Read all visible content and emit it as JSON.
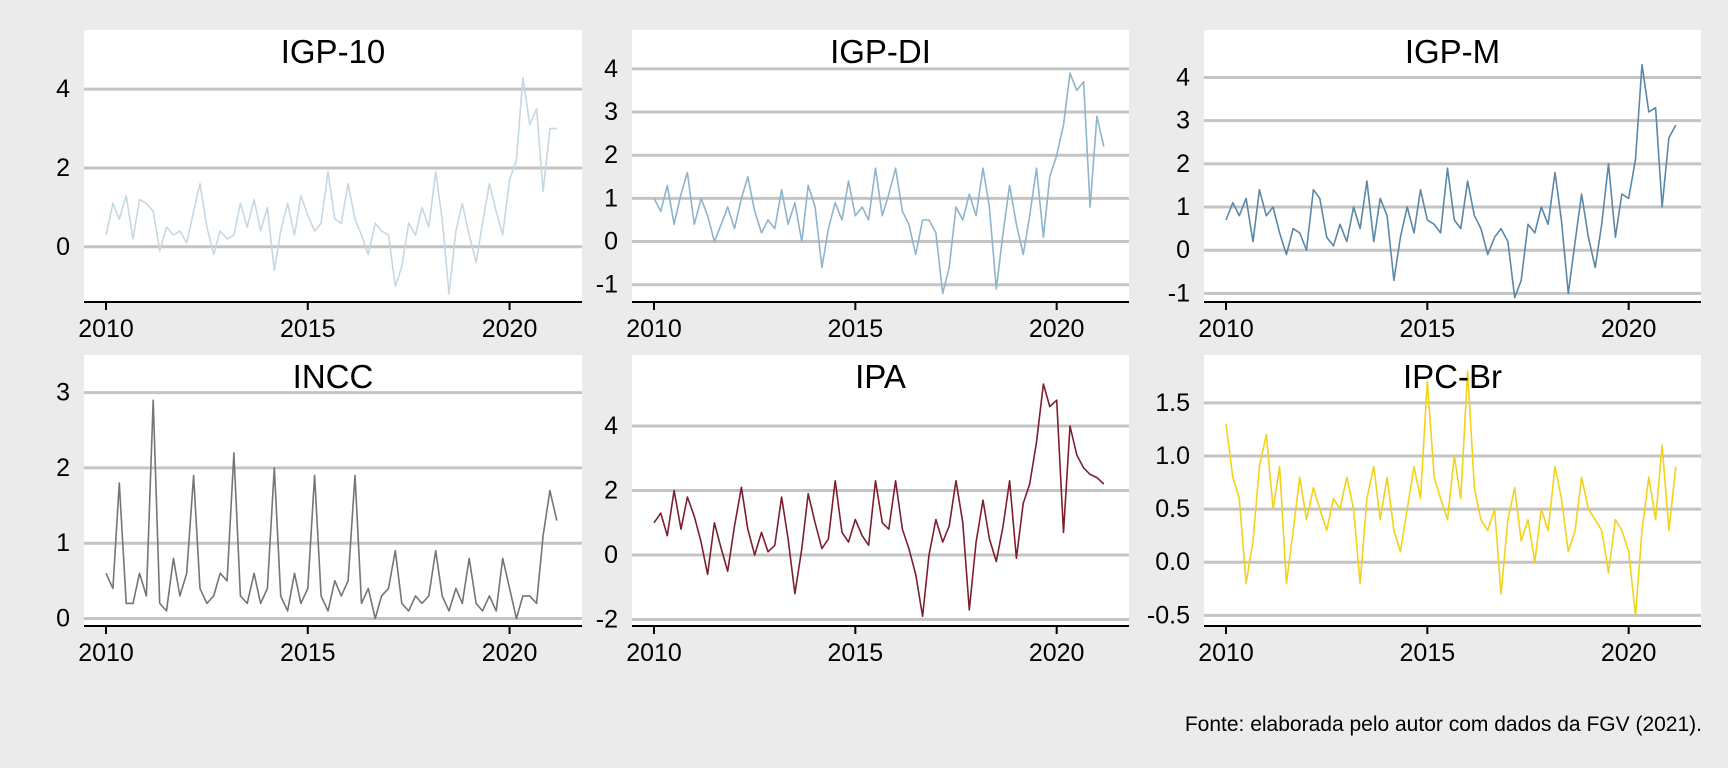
{
  "caption": "Fonte: elaborada pelo autor com dados da FGV (2021).",
  "chart_data": [
    {
      "type": "line",
      "title": "IGP-10",
      "color": "#c6d8e4",
      "xlim": [
        2010,
        2021.25
      ],
      "ylim": [
        -1.4,
        5.5
      ],
      "xticks": [
        2010,
        2015,
        2020
      ],
      "xtick_labels": [
        "2010",
        "2015",
        "2020"
      ],
      "yticks": [
        0,
        2,
        4
      ],
      "ytick_labels": [
        "0",
        "2",
        "4"
      ],
      "grid": "horizontal",
      "series": [
        {
          "x": [
            2010.0,
            2010.17,
            2010.33,
            2010.5,
            2010.67,
            2010.83,
            2011.0,
            2011.17,
            2011.33,
            2011.5,
            2011.67,
            2011.83,
            2012.0,
            2012.17,
            2012.33,
            2012.5,
            2012.67,
            2012.83,
            2013.0,
            2013.17,
            2013.33,
            2013.5,
            2013.67,
            2013.83,
            2014.0,
            2014.17,
            2014.33,
            2014.5,
            2014.67,
            2014.83,
            2015.0,
            2015.17,
            2015.33,
            2015.5,
            2015.67,
            2015.83,
            2016.0,
            2016.17,
            2016.33,
            2016.5,
            2016.67,
            2016.83,
            2017.0,
            2017.17,
            2017.33,
            2017.5,
            2017.67,
            2017.83,
            2018.0,
            2018.17,
            2018.33,
            2018.5,
            2018.67,
            2018.83,
            2019.0,
            2019.17,
            2019.33,
            2019.5,
            2019.67,
            2019.83,
            2020.0,
            2020.17,
            2020.33,
            2020.5,
            2020.67,
            2020.83,
            2021.0,
            2021.17
          ],
          "y": [
            0.3,
            1.1,
            0.7,
            1.3,
            0.2,
            1.2,
            1.1,
            0.9,
            -0.1,
            0.5,
            0.3,
            0.4,
            0.1,
            0.9,
            1.6,
            0.5,
            -0.2,
            0.4,
            0.2,
            0.3,
            1.1,
            0.5,
            1.2,
            0.4,
            1.0,
            -0.6,
            0.4,
            1.1,
            0.3,
            1.3,
            0.8,
            0.4,
            0.6,
            1.9,
            0.7,
            0.6,
            1.6,
            0.7,
            0.3,
            -0.2,
            0.6,
            0.4,
            0.3,
            -1.0,
            -0.5,
            0.6,
            0.3,
            1.0,
            0.5,
            1.9,
            0.7,
            -1.2,
            0.4,
            1.1,
            0.3,
            -0.4,
            0.6,
            1.6,
            0.9,
            0.3,
            1.7,
            2.2,
            4.3,
            3.1,
            3.5,
            1.4,
            3.0,
            3.0
          ]
        }
      ]
    },
    {
      "type": "line",
      "title": "IGP-DI",
      "color": "#8fb4cc",
      "xlim": [
        2010,
        2021.25
      ],
      "ylim": [
        -1.4,
        4.9
      ],
      "xticks": [
        2010,
        2015,
        2020
      ],
      "xtick_labels": [
        "2010",
        "2015",
        "2020"
      ],
      "yticks": [
        -1,
        0,
        1,
        2,
        3,
        4
      ],
      "ytick_labels": [
        "-1",
        "0",
        "1",
        "2",
        "3",
        "4"
      ],
      "grid": "horizontal",
      "series": [
        {
          "x": [
            2010.0,
            2010.17,
            2010.33,
            2010.5,
            2010.67,
            2010.83,
            2011.0,
            2011.17,
            2011.33,
            2011.5,
            2011.67,
            2011.83,
            2012.0,
            2012.17,
            2012.33,
            2012.5,
            2012.67,
            2012.83,
            2013.0,
            2013.17,
            2013.33,
            2013.5,
            2013.67,
            2013.83,
            2014.0,
            2014.17,
            2014.33,
            2014.5,
            2014.67,
            2014.83,
            2015.0,
            2015.17,
            2015.33,
            2015.5,
            2015.67,
            2015.83,
            2016.0,
            2016.17,
            2016.33,
            2016.5,
            2016.67,
            2016.83,
            2017.0,
            2017.17,
            2017.33,
            2017.5,
            2017.67,
            2017.83,
            2018.0,
            2018.17,
            2018.33,
            2018.5,
            2018.67,
            2018.83,
            2019.0,
            2019.17,
            2019.33,
            2019.5,
            2019.67,
            2019.83,
            2020.0,
            2020.17,
            2020.33,
            2020.5,
            2020.67,
            2020.83,
            2021.0,
            2021.17
          ],
          "y": [
            1.0,
            0.7,
            1.3,
            0.4,
            1.1,
            1.6,
            0.4,
            1.0,
            0.6,
            0.0,
            0.4,
            0.8,
            0.3,
            1.0,
            1.5,
            0.7,
            0.2,
            0.5,
            0.3,
            1.2,
            0.4,
            0.9,
            0.0,
            1.3,
            0.8,
            -0.6,
            0.3,
            0.9,
            0.5,
            1.4,
            0.6,
            0.8,
            0.5,
            1.7,
            0.6,
            1.1,
            1.7,
            0.7,
            0.4,
            -0.3,
            0.5,
            0.5,
            0.2,
            -1.2,
            -0.6,
            0.8,
            0.5,
            1.1,
            0.6,
            1.7,
            0.8,
            -1.1,
            0.2,
            1.3,
            0.4,
            -0.3,
            0.6,
            1.7,
            0.1,
            1.5,
            2.0,
            2.7,
            3.9,
            3.5,
            3.7,
            0.8,
            2.9,
            2.2
          ]
        }
      ]
    },
    {
      "type": "line",
      "title": "IGP-M",
      "color": "#5b88a8",
      "xlim": [
        2010,
        2021.25
      ],
      "ylim": [
        -1.2,
        5.1
      ],
      "xticks": [
        2010,
        2015,
        2020
      ],
      "xtick_labels": [
        "2010",
        "2015",
        "2020"
      ],
      "yticks": [
        -1,
        0,
        1,
        2,
        3,
        4
      ],
      "ytick_labels": [
        "-1",
        "0",
        "1",
        "2",
        "3",
        "4"
      ],
      "grid": "horizontal",
      "series": [
        {
          "x": [
            2010.0,
            2010.17,
            2010.33,
            2010.5,
            2010.67,
            2010.83,
            2011.0,
            2011.17,
            2011.33,
            2011.5,
            2011.67,
            2011.83,
            2012.0,
            2012.17,
            2012.33,
            2012.5,
            2012.67,
            2012.83,
            2013.0,
            2013.17,
            2013.33,
            2013.5,
            2013.67,
            2013.83,
            2014.0,
            2014.17,
            2014.33,
            2014.5,
            2014.67,
            2014.83,
            2015.0,
            2015.17,
            2015.33,
            2015.5,
            2015.67,
            2015.83,
            2016.0,
            2016.17,
            2016.33,
            2016.5,
            2016.67,
            2016.83,
            2017.0,
            2017.17,
            2017.33,
            2017.5,
            2017.67,
            2017.83,
            2018.0,
            2018.17,
            2018.33,
            2018.5,
            2018.67,
            2018.83,
            2019.0,
            2019.17,
            2019.33,
            2019.5,
            2019.67,
            2019.83,
            2020.0,
            2020.17,
            2020.33,
            2020.5,
            2020.67,
            2020.83,
            2021.0,
            2021.17
          ],
          "y": [
            0.7,
            1.1,
            0.8,
            1.2,
            0.2,
            1.4,
            0.8,
            1.0,
            0.4,
            -0.1,
            0.5,
            0.4,
            0.0,
            1.4,
            1.2,
            0.3,
            0.1,
            0.6,
            0.2,
            1.0,
            0.5,
            1.6,
            0.2,
            1.2,
            0.8,
            -0.7,
            0.3,
            1.0,
            0.4,
            1.4,
            0.7,
            0.6,
            0.4,
            1.9,
            0.7,
            0.5,
            1.6,
            0.8,
            0.5,
            -0.1,
            0.3,
            0.5,
            0.2,
            -1.1,
            -0.7,
            0.6,
            0.4,
            1.0,
            0.6,
            1.8,
            0.7,
            -1.0,
            0.2,
            1.3,
            0.3,
            -0.4,
            0.6,
            2.0,
            0.3,
            1.3,
            1.2,
            2.1,
            4.3,
            3.2,
            3.3,
            1.0,
            2.6,
            2.9
          ]
        }
      ]
    },
    {
      "type": "line",
      "title": "INCC",
      "color": "#757575",
      "xlim": [
        2010,
        2021.25
      ],
      "ylim": [
        -0.1,
        3.5
      ],
      "xticks": [
        2010,
        2015,
        2020
      ],
      "xtick_labels": [
        "2010",
        "2015",
        "2020"
      ],
      "yticks": [
        0,
        1,
        2,
        3
      ],
      "ytick_labels": [
        "0",
        "1",
        "2",
        "3"
      ],
      "grid": "horizontal",
      "series": [
        {
          "x": [
            2010.0,
            2010.17,
            2010.33,
            2010.5,
            2010.67,
            2010.83,
            2011.0,
            2011.17,
            2011.33,
            2011.5,
            2011.67,
            2011.83,
            2012.0,
            2012.17,
            2012.33,
            2012.5,
            2012.67,
            2012.83,
            2013.0,
            2013.17,
            2013.33,
            2013.5,
            2013.67,
            2013.83,
            2014.0,
            2014.17,
            2014.33,
            2014.5,
            2014.67,
            2014.83,
            2015.0,
            2015.17,
            2015.33,
            2015.5,
            2015.67,
            2015.83,
            2016.0,
            2016.17,
            2016.33,
            2016.5,
            2016.67,
            2016.83,
            2017.0,
            2017.17,
            2017.33,
            2017.5,
            2017.67,
            2017.83,
            2018.0,
            2018.17,
            2018.33,
            2018.5,
            2018.67,
            2018.83,
            2019.0,
            2019.17,
            2019.33,
            2019.5,
            2019.67,
            2019.83,
            2020.0,
            2020.17,
            2020.33,
            2020.5,
            2020.67,
            2020.83,
            2021.0,
            2021.17
          ],
          "y": [
            0.6,
            0.4,
            1.8,
            0.2,
            0.2,
            0.6,
            0.3,
            2.9,
            0.2,
            0.1,
            0.8,
            0.3,
            0.6,
            1.9,
            0.4,
            0.2,
            0.3,
            0.6,
            0.5,
            2.2,
            0.3,
            0.2,
            0.6,
            0.2,
            0.4,
            2.0,
            0.3,
            0.1,
            0.6,
            0.2,
            0.4,
            1.9,
            0.3,
            0.1,
            0.5,
            0.3,
            0.5,
            1.9,
            0.2,
            0.4,
            0.0,
            0.3,
            0.4,
            0.9,
            0.2,
            0.1,
            0.3,
            0.2,
            0.3,
            0.9,
            0.3,
            0.1,
            0.4,
            0.2,
            0.8,
            0.2,
            0.1,
            0.3,
            0.1,
            0.8,
            0.4,
            0.0,
            0.3,
            0.3,
            0.2,
            1.1,
            1.7,
            1.3
          ]
        }
      ]
    },
    {
      "type": "line",
      "title": "IPA",
      "color": "#7d1f2e",
      "xlim": [
        2010,
        2021.25
      ],
      "ylim": [
        -2.2,
        6.2
      ],
      "xticks": [
        2010,
        2015,
        2020
      ],
      "xtick_labels": [
        "2010",
        "2015",
        "2020"
      ],
      "yticks": [
        -2,
        0,
        2,
        4
      ],
      "ytick_labels": [
        "-2",
        "0",
        "2",
        "4"
      ],
      "grid": "horizontal",
      "series": [
        {
          "x": [
            2010.0,
            2010.17,
            2010.33,
            2010.5,
            2010.67,
            2010.83,
            2011.0,
            2011.17,
            2011.33,
            2011.5,
            2011.67,
            2011.83,
            2012.0,
            2012.17,
            2012.33,
            2012.5,
            2012.67,
            2012.83,
            2013.0,
            2013.17,
            2013.33,
            2013.5,
            2013.67,
            2013.83,
            2014.0,
            2014.17,
            2014.33,
            2014.5,
            2014.67,
            2014.83,
            2015.0,
            2015.17,
            2015.33,
            2015.5,
            2015.67,
            2015.83,
            2016.0,
            2016.17,
            2016.33,
            2016.5,
            2016.67,
            2016.83,
            2017.0,
            2017.17,
            2017.33,
            2017.5,
            2017.67,
            2017.83,
            2018.0,
            2018.17,
            2018.33,
            2018.5,
            2018.67,
            2018.83,
            2019.0,
            2019.17,
            2019.33,
            2019.5,
            2019.67,
            2019.83,
            2020.0,
            2020.17,
            2020.33,
            2020.5,
            2020.67,
            2020.83,
            2021.0,
            2021.17
          ],
          "y": [
            1.0,
            1.3,
            0.6,
            2.0,
            0.8,
            1.8,
            1.2,
            0.4,
            -0.6,
            1.0,
            0.2,
            -0.5,
            0.9,
            2.1,
            0.8,
            0.0,
            0.7,
            0.1,
            0.3,
            1.8,
            0.5,
            -1.2,
            0.2,
            1.9,
            1.0,
            0.2,
            0.5,
            2.3,
            0.7,
            0.4,
            1.1,
            0.6,
            0.3,
            2.3,
            1.0,
            0.8,
            2.3,
            0.8,
            0.2,
            -0.6,
            -1.9,
            0.0,
            1.1,
            0.4,
            0.9,
            2.3,
            1.0,
            -1.7,
            0.4,
            1.7,
            0.5,
            -0.2,
            0.9,
            2.3,
            -0.1,
            1.6,
            2.2,
            3.5,
            5.3,
            4.6,
            4.8,
            0.7,
            4.0,
            3.1,
            2.7,
            2.5,
            2.4,
            2.2
          ]
        }
      ]
    },
    {
      "type": "line",
      "title": "IPC-Br",
      "color": "#f2d21a",
      "xlim": [
        2010,
        2021.25
      ],
      "ylim": [
        -0.6,
        1.95
      ],
      "xticks": [
        2010,
        2015,
        2020
      ],
      "xtick_labels": [
        "2010",
        "2015",
        "2020"
      ],
      "yticks": [
        -0.5,
        0.0,
        0.5,
        1.0,
        1.5
      ],
      "ytick_labels": [
        "-0.5",
        "0.0",
        "0.5",
        "1.0",
        "1.5"
      ],
      "grid": "horizontal",
      "series": [
        {
          "x": [
            2010.0,
            2010.17,
            2010.33,
            2010.5,
            2010.67,
            2010.83,
            2011.0,
            2011.17,
            2011.33,
            2011.5,
            2011.67,
            2011.83,
            2012.0,
            2012.17,
            2012.33,
            2012.5,
            2012.67,
            2012.83,
            2013.0,
            2013.17,
            2013.33,
            2013.5,
            2013.67,
            2013.83,
            2014.0,
            2014.17,
            2014.33,
            2014.5,
            2014.67,
            2014.83,
            2015.0,
            2015.17,
            2015.33,
            2015.5,
            2015.67,
            2015.83,
            2016.0,
            2016.17,
            2016.33,
            2016.5,
            2016.67,
            2016.83,
            2017.0,
            2017.17,
            2017.33,
            2017.5,
            2017.67,
            2017.83,
            2018.0,
            2018.17,
            2018.33,
            2018.5,
            2018.67,
            2018.83,
            2019.0,
            2019.17,
            2019.33,
            2019.5,
            2019.67,
            2019.83,
            2020.0,
            2020.17,
            2020.33,
            2020.5,
            2020.67,
            2020.83,
            2021.0,
            2021.17
          ],
          "y": [
            1.3,
            0.8,
            0.6,
            -0.2,
            0.2,
            0.9,
            1.2,
            0.5,
            0.9,
            -0.2,
            0.3,
            0.8,
            0.4,
            0.7,
            0.5,
            0.3,
            0.6,
            0.5,
            0.8,
            0.5,
            -0.2,
            0.6,
            0.9,
            0.4,
            0.8,
            0.3,
            0.1,
            0.5,
            0.9,
            0.6,
            1.7,
            0.8,
            0.6,
            0.4,
            1.0,
            0.6,
            1.8,
            0.7,
            0.4,
            0.3,
            0.5,
            -0.3,
            0.4,
            0.7,
            0.2,
            0.4,
            0.0,
            0.5,
            0.3,
            0.9,
            0.6,
            0.1,
            0.3,
            0.8,
            0.5,
            0.4,
            0.3,
            -0.1,
            0.4,
            0.3,
            0.1,
            -0.5,
            0.3,
            0.8,
            0.4,
            1.1,
            0.3,
            0.9
          ]
        }
      ]
    }
  ]
}
